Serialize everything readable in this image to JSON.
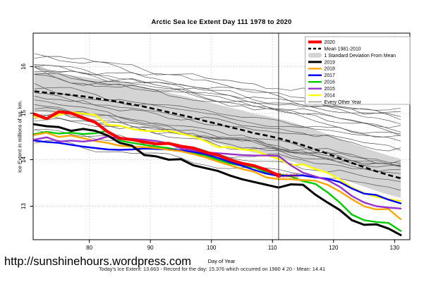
{
  "page": {
    "title": "Arctic Sea Ice Extent Day 111 1978 to 2020",
    "x_axis_label": "Day of Year",
    "y_axis_label": "Ice Extent in millions of sq. km.",
    "watermark_url": "http://sunshinehours.wordpress.com",
    "stats_line": "Today's Ice Extent: 13.663  - Record for the day: 15.376 which occurred on 1980 4 20  - Mean: 14.41"
  },
  "chart_data": {
    "type": "line",
    "title": "Arctic Sea Ice Extent Day 111 1978 to 2020",
    "xlabel": "Day of Year",
    "ylabel": "Ice Extent in millions of sq. km.",
    "xlim": [
      70.8,
      132.5
    ],
    "ylim": [
      12.28,
      16.72
    ],
    "xticks": [
      80,
      90,
      100,
      110,
      120,
      130
    ],
    "yticks": [
      13,
      14,
      15,
      16
    ],
    "grid": "dotted",
    "grid_color": "#c8c8c8",
    "day_marker": 111,
    "annotation": {
      "text": "13.663",
      "day": 111,
      "value": 13.663,
      "color": "#FF0000"
    },
    "band": {
      "label": "1 Standard Deviation From Mean",
      "color": "#D4D4D4",
      "halfwidth": 0.42
    },
    "mean": {
      "label": "Mean 1981-2010",
      "color": "#000000",
      "width": 2.6,
      "dash": "7 4",
      "day_start": 71,
      "day_step": 2,
      "values": [
        15.47,
        15.44,
        15.42,
        15.39,
        15.36,
        15.32,
        15.28,
        15.24,
        15.19,
        15.14,
        15.08,
        15.02,
        14.96,
        14.9,
        14.83,
        14.77,
        14.7,
        14.64,
        14.57,
        14.52,
        14.46,
        14.39,
        14.31,
        14.22,
        14.13,
        14.03,
        13.93,
        13.84,
        13.75,
        13.67,
        13.6
      ]
    },
    "series": [
      {
        "name": "2014",
        "color": "#FFFF00",
        "width": 2.4,
        "day_start": 71,
        "day_step": 2,
        "values": [
          14.93,
          14.88,
          14.96,
          15.02,
          14.99,
          14.96,
          14.75,
          14.73,
          14.66,
          14.62,
          14.61,
          14.62,
          14.56,
          14.5,
          14.4,
          14.27,
          14.27,
          14.22,
          14.2,
          14.1,
          14.02,
          13.88,
          13.9,
          13.8,
          13.72,
          13.58,
          13.4,
          13.28,
          13.2,
          13.15,
          13.11
        ]
      },
      {
        "name": "2016",
        "color": "#00CC00",
        "width": 2.4,
        "day_start": 71,
        "day_step": 2,
        "values": [
          14.55,
          14.6,
          14.56,
          14.58,
          14.55,
          14.57,
          14.62,
          14.41,
          14.36,
          14.32,
          14.28,
          14.25,
          14.19,
          14.14,
          14.09,
          14.0,
          13.92,
          13.87,
          13.84,
          13.73,
          13.69,
          13.64,
          13.54,
          13.48,
          13.3,
          13.08,
          12.82,
          12.7,
          12.66,
          12.64,
          12.47
        ]
      },
      {
        "name": "2017",
        "color": "#0000FF",
        "width": 2.4,
        "day_start": 71,
        "day_step": 2,
        "values": [
          14.41,
          14.38,
          14.36,
          14.32,
          14.28,
          14.25,
          14.22,
          14.21,
          14.22,
          14.24,
          14.23,
          14.22,
          14.2,
          14.17,
          14.12,
          14.04,
          13.95,
          13.87,
          13.78,
          13.7,
          13.65,
          13.66,
          13.66,
          13.62,
          13.59,
          13.52,
          13.38,
          13.27,
          13.24,
          13.14,
          13.06
        ]
      },
      {
        "name": "2018",
        "color": "#FFA500",
        "width": 2.4,
        "day_start": 71,
        "day_step": 2,
        "values": [
          14.53,
          14.58,
          14.49,
          14.52,
          14.46,
          14.4,
          14.36,
          14.3,
          14.28,
          14.27,
          14.25,
          14.21,
          14.18,
          14.12,
          14.05,
          13.96,
          13.88,
          13.8,
          13.74,
          13.62,
          13.58,
          13.58,
          13.56,
          13.55,
          13.46,
          13.32,
          13.15,
          13.0,
          12.93,
          12.94,
          12.72
        ]
      },
      {
        "name": "2015",
        "color": "#9932CC",
        "width": 2.4,
        "day_start": 71,
        "day_step": 2,
        "values": [
          14.43,
          14.48,
          14.39,
          14.41,
          14.39,
          14.42,
          14.5,
          14.45,
          14.45,
          14.43,
          14.4,
          14.35,
          14.24,
          14.2,
          14.16,
          14.14,
          14.12,
          14.1,
          14.09,
          14.09,
          14.08,
          13.88,
          13.72,
          13.64,
          13.56,
          13.42,
          13.22,
          13.08,
          13.0,
          12.97,
          12.95
        ]
      },
      {
        "name": "2019",
        "color": "#000000",
        "width": 3.0,
        "day_start": 71,
        "day_step": 2,
        "values": [
          14.76,
          14.72,
          14.7,
          14.62,
          14.66,
          14.62,
          14.52,
          14.36,
          14.3,
          14.1,
          14.07,
          14.0,
          14.01,
          13.88,
          13.82,
          13.76,
          13.66,
          13.58,
          13.52,
          13.46,
          13.4,
          13.47,
          13.46,
          13.25,
          13.08,
          12.92,
          12.7,
          12.6,
          12.61,
          12.52,
          12.38
        ]
      },
      {
        "name": "2020",
        "color": "#FF0000",
        "width": 4.2,
        "day_start": 71,
        "day_step": 2,
        "end_marker": true,
        "values": [
          14.98,
          14.88,
          15.03,
          15.0,
          14.9,
          14.8,
          14.6,
          14.46,
          14.43,
          14.38,
          14.34,
          14.35,
          14.29,
          14.25,
          14.16,
          14.1,
          14.0,
          13.92,
          13.87,
          13.78,
          13.663
        ]
      }
    ],
    "other_years": {
      "label": "Every Other Year",
      "color": "#3F3F3F",
      "width": 0.7,
      "count": 24,
      "seed": 11,
      "start_range": [
        14.45,
        16.32
      ],
      "drop_range": [
        0.9,
        1.5
      ],
      "end_clamp": [
        13.25,
        15.25
      ],
      "wiggle": 0.14,
      "day_start": 71,
      "day_step": 2,
      "points": 31
    },
    "legend": {
      "items": [
        {
          "label": "2020",
          "swatch": "line",
          "color": "#FF0000",
          "lw": 4
        },
        {
          "label": "Mean 1981-2010",
          "swatch": "dash",
          "color": "#000000",
          "lw": 2.5
        },
        {
          "label": "1 Standard Deviation From Mean",
          "swatch": "band",
          "color": "#D4D4D4"
        },
        {
          "label": "2019",
          "swatch": "line",
          "color": "#000000",
          "lw": 3
        },
        {
          "label": "2018",
          "swatch": "line",
          "color": "#FFA500",
          "lw": 2.4
        },
        {
          "label": "2017",
          "swatch": "line",
          "color": "#0000FF",
          "lw": 2.4
        },
        {
          "label": "2016",
          "swatch": "line",
          "color": "#00CC00",
          "lw": 2.4
        },
        {
          "label": "2015",
          "swatch": "line",
          "color": "#9932CC",
          "lw": 2.4
        },
        {
          "label": "2014",
          "swatch": "line",
          "color": "#FFFF00",
          "lw": 2.4
        },
        {
          "label": "Every Other Year",
          "swatch": "line",
          "color": "#777777",
          "lw": 1
        }
      ]
    }
  }
}
